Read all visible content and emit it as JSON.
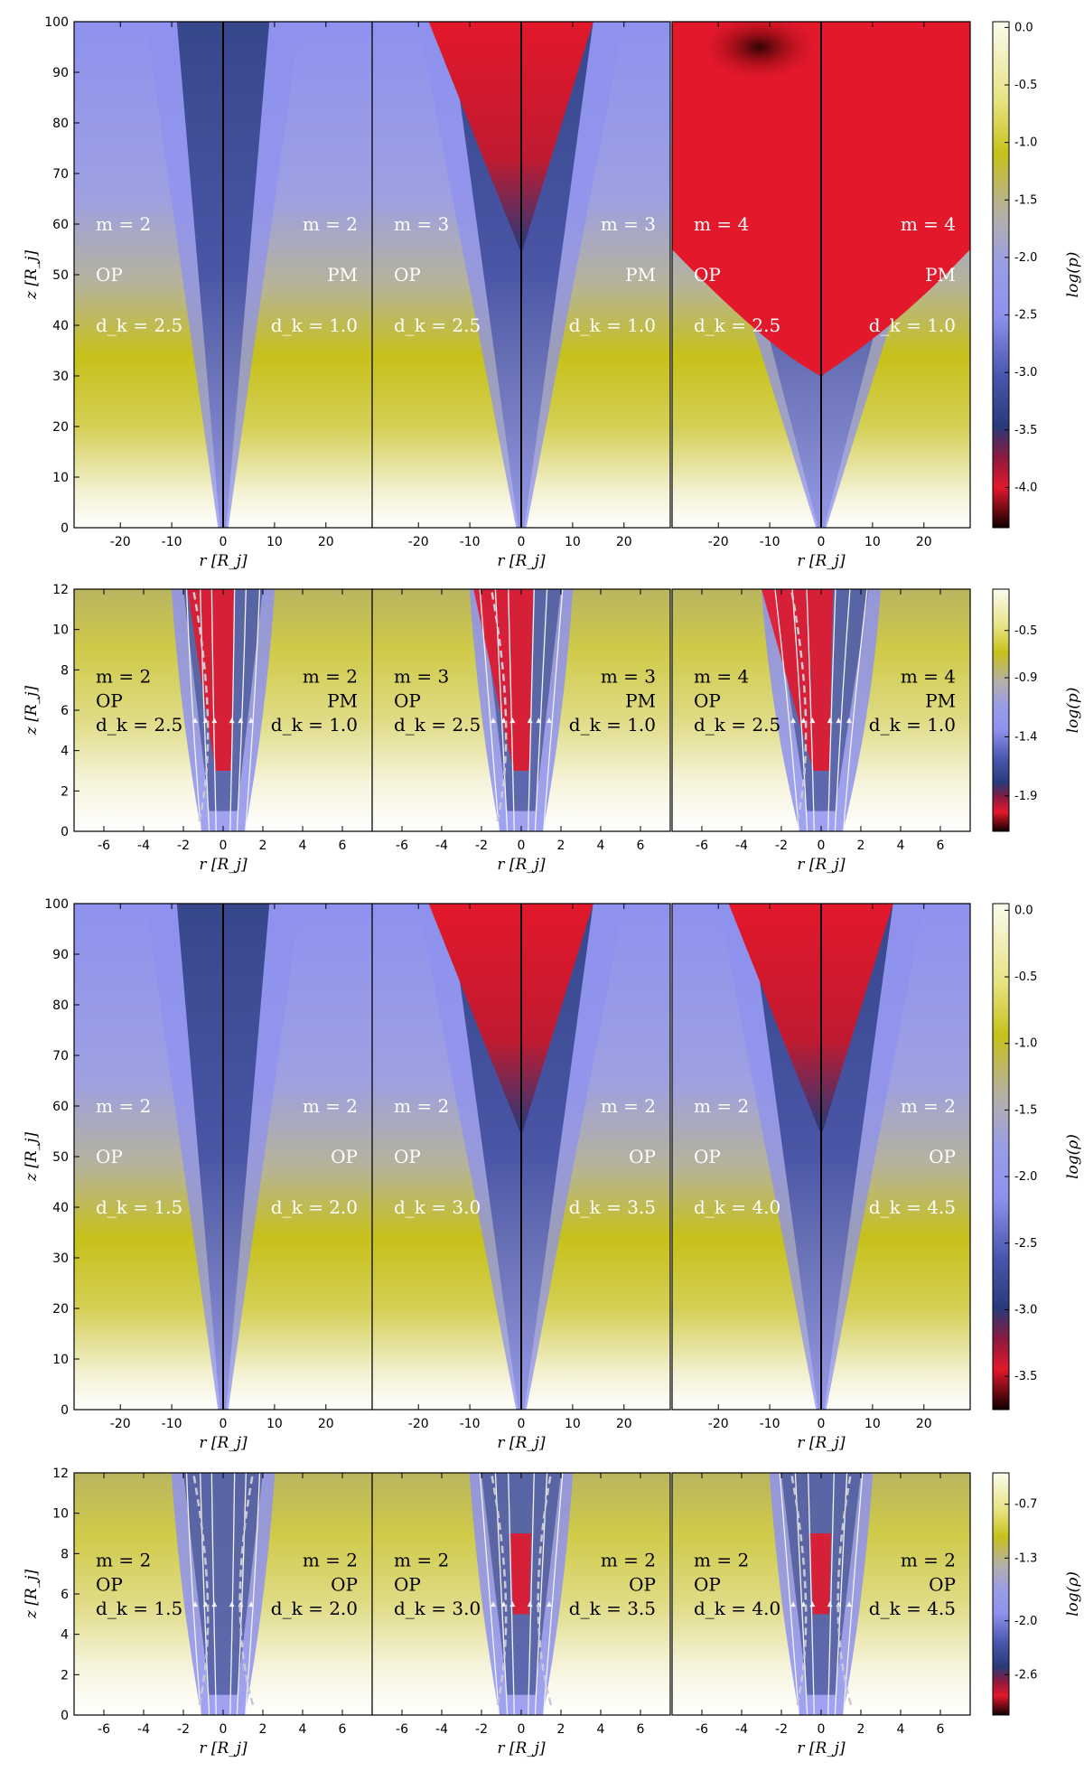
{
  "figure": {
    "rows": [
      {
        "id": "row1",
        "variable": "log(p)",
        "cbar_label": "log(p)",
        "cbar_ticks": [
          "0.0",
          "-0.5",
          "-1.0",
          "-1.5",
          "-2.0",
          "-2.5",
          "-3.0",
          "-3.5",
          "-4.0"
        ],
        "cbar_range": [
          -4.35,
          0.05
        ],
        "x_ticks": [
          "-20",
          "-10",
          "0",
          "10",
          "20"
        ],
        "x_tick_values": [
          -20,
          -10,
          0,
          10,
          20
        ],
        "x_range": [
          -29,
          29
        ],
        "y_ticks": [
          "0",
          "10",
          "20",
          "30",
          "40",
          "50",
          "60",
          "70",
          "80",
          "90",
          "100"
        ],
        "y_range": [
          0,
          100
        ],
        "xlabel": "r [R_j]",
        "ylabel": "z [R_j]",
        "streamlines": false,
        "panels": [
          {
            "left": [
              "m = 2",
              "OP",
              "d_k = 2.5"
            ],
            "right": [
              "m = 2",
              "PM",
              "d_k = 1.0"
            ],
            "jet": 1
          },
          {
            "left": [
              "m = 3",
              "OP",
              "d_k = 2.5"
            ],
            "right": [
              "m = 3",
              "PM",
              "d_k = 1.0"
            ],
            "jet": 2
          },
          {
            "left": [
              "m = 4",
              "OP",
              "d_k = 2.5"
            ],
            "right": [
              "m = 4",
              "PM",
              "d_k = 1.0"
            ],
            "jet": 3
          }
        ]
      },
      {
        "id": "row2",
        "variable": "log(p)",
        "cbar_label": "log(p)",
        "cbar_ticks": [
          "-0.5",
          "-0.9",
          "-1.4",
          "-1.9"
        ],
        "cbar_range": [
          -2.2,
          -0.15
        ],
        "x_ticks": [
          "-6",
          "-4",
          "-2",
          "0",
          "2",
          "4",
          "6"
        ],
        "x_tick_values": [
          -6,
          -4,
          -2,
          0,
          2,
          4,
          6
        ],
        "x_range": [
          -7.5,
          7.5
        ],
        "y_ticks": [
          "0",
          "2",
          "4",
          "6",
          "8",
          "10",
          "12"
        ],
        "y_range": [
          0,
          12
        ],
        "xlabel": "r [R_j]",
        "ylabel": "z [R_j]",
        "streamlines": true,
        "panels": [
          {
            "left": [
              "m = 2",
              "OP",
              "d_k = 2.5"
            ],
            "right": [
              "m = 2",
              "PM",
              "d_k = 1.0"
            ],
            "jet": 1
          },
          {
            "left": [
              "m = 3",
              "OP",
              "d_k = 2.5"
            ],
            "right": [
              "m = 3",
              "PM",
              "d_k = 1.0"
            ],
            "jet": 2
          },
          {
            "left": [
              "m = 4",
              "OP",
              "d_k = 2.5"
            ],
            "right": [
              "m = 4",
              "PM",
              "d_k = 1.0"
            ],
            "jet": 3
          }
        ]
      },
      {
        "id": "row3",
        "variable": "log(ρ)",
        "cbar_label": "log(ρ)",
        "cbar_ticks": [
          "0.0",
          "-0.5",
          "-1.0",
          "-1.5",
          "-2.0",
          "-2.5",
          "-3.0",
          "-3.5"
        ],
        "cbar_range": [
          -3.75,
          0.05
        ],
        "x_ticks": [
          "-20",
          "-10",
          "0",
          "10",
          "20"
        ],
        "x_tick_values": [
          -20,
          -10,
          0,
          10,
          20
        ],
        "x_range": [
          -29,
          29
        ],
        "y_ticks": [
          "0",
          "10",
          "20",
          "30",
          "40",
          "50",
          "60",
          "70",
          "80",
          "90",
          "100"
        ],
        "y_range": [
          0,
          100
        ],
        "xlabel": "r [R_j]",
        "ylabel": "z [R_j]",
        "streamlines": false,
        "panels": [
          {
            "left": [
              "m = 2",
              "OP",
              "d_k = 1.5"
            ],
            "right": [
              "m = 2",
              "OP",
              "d_k = 2.0"
            ],
            "jet": 1
          },
          {
            "left": [
              "m = 2",
              "OP",
              "d_k = 3.0"
            ],
            "right": [
              "m = 2",
              "OP",
              "d_k = 3.5"
            ],
            "jet": 2
          },
          {
            "left": [
              "m = 2",
              "OP",
              "d_k = 4.0"
            ],
            "right": [
              "m = 2",
              "OP",
              "d_k = 4.5"
            ],
            "jet": 2
          }
        ]
      },
      {
        "id": "row4",
        "variable": "log(ρ)",
        "cbar_label": "log(ρ)",
        "cbar_ticks": [
          "-0.7",
          "-1.3",
          "-2.0",
          "-2.6"
        ],
        "cbar_range": [
          -3.05,
          -0.35
        ],
        "x_ticks": [
          "-6",
          "-4",
          "-2",
          "0",
          "2",
          "4",
          "6"
        ],
        "x_tick_values": [
          -6,
          -4,
          -2,
          0,
          2,
          4,
          6
        ],
        "x_range": [
          -7.5,
          7.5
        ],
        "y_ticks": [
          "0",
          "2",
          "4",
          "6",
          "8",
          "10",
          "12"
        ],
        "y_range": [
          0,
          12
        ],
        "xlabel": "r [R_j]",
        "ylabel": "z [R_j]",
        "streamlines": true,
        "panels": [
          {
            "left": [
              "m = 2",
              "OP",
              "d_k = 1.5"
            ],
            "right": [
              "m = 2",
              "OP",
              "d_k = 2.0"
            ],
            "jet": 1
          },
          {
            "left": [
              "m = 2",
              "OP",
              "d_k = 3.0"
            ],
            "right": [
              "m = 2",
              "OP",
              "d_k = 3.5"
            ],
            "jet": 2
          },
          {
            "left": [
              "m = 2",
              "OP",
              "d_k = 4.0"
            ],
            "right": [
              "m = 2",
              "OP",
              "d_k = 4.5"
            ],
            "jet": 2
          }
        ]
      }
    ]
  },
  "colors": {
    "white": "#ffffff",
    "olive": "#c7c11a",
    "periwinkle": "#8e92ee",
    "navy": "#283a7a",
    "red": "#e3182b",
    "black": "#000000",
    "streamline": "#f2f2f2",
    "dashed": "#c9c9d6"
  }
}
